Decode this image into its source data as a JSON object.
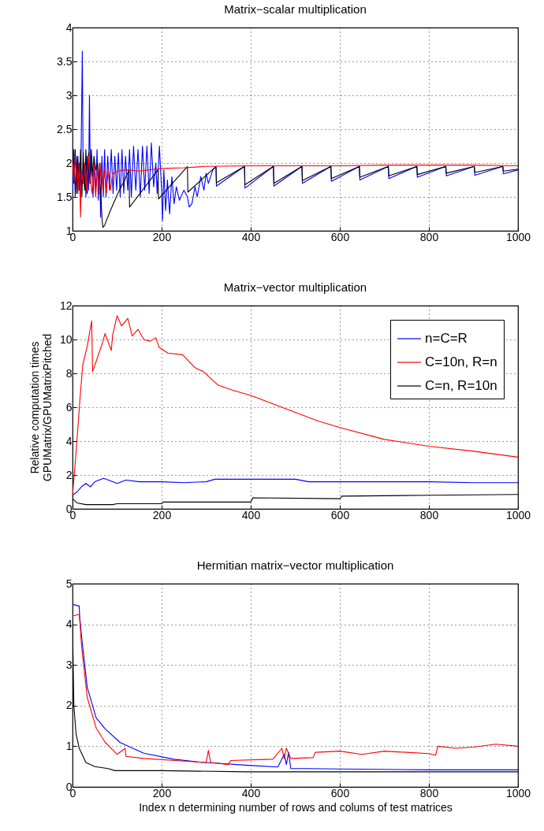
{
  "chart_data": [
    {
      "type": "line",
      "title": "Matrix−scalar multiplication",
      "xlim": [
        0,
        1000
      ],
      "xticks": [
        0,
        200,
        400,
        600,
        800,
        1000
      ],
      "ylim": [
        1,
        4
      ],
      "yticks": [
        1,
        1.5,
        2,
        2.5,
        3,
        3.5,
        4
      ],
      "grid": true,
      "legend": false,
      "series": [
        {
          "color": "#0000ff",
          "x": [
            0,
            3,
            6,
            9,
            12,
            15,
            18,
            22,
            24,
            27,
            30,
            33,
            36,
            38,
            40,
            43,
            46,
            49,
            52,
            55,
            58,
            61,
            63,
            66,
            69,
            72,
            75,
            79,
            83,
            87,
            91,
            95,
            99,
            103,
            107,
            111,
            115,
            119,
            124,
            128,
            132,
            137,
            142,
            147,
            152,
            157,
            162,
            167,
            172,
            177,
            182,
            187,
            190,
            195,
            200,
            202,
            205,
            209,
            213,
            218,
            223,
            228,
            233,
            240,
            250,
            258,
            262,
            268,
            275,
            280,
            288,
            295,
            300,
            305,
            315,
            322,
            323,
            386,
            387,
            451,
            452,
            515,
            516,
            580,
            581,
            644,
            645,
            709,
            710,
            773,
            774,
            838,
            839,
            902,
            903,
            966,
            967,
            1000
          ],
          "values": [
            1.6,
            2.2,
            1.5,
            2.1,
            1.6,
            2.0,
            1.5,
            3.65,
            1.7,
            2.0,
            1.5,
            2.1,
            1.6,
            3.0,
            1.7,
            2.1,
            1.5,
            2.0,
            1.55,
            2.2,
            1.45,
            2.0,
            1.2,
            2.1,
            1.5,
            2.2,
            1.5,
            2.1,
            1.6,
            2.2,
            1.55,
            2.1,
            1.6,
            2.15,
            1.5,
            2.2,
            1.55,
            2.1,
            1.6,
            2.2,
            1.5,
            2.25,
            1.6,
            2.2,
            1.5,
            2.25,
            1.6,
            2.25,
            1.55,
            2.3,
            1.65,
            2.0,
            1.55,
            2.25,
            1.6,
            1.15,
            1.9,
            1.3,
            1.75,
            1.25,
            1.8,
            1.4,
            1.65,
            1.45,
            1.6,
            1.5,
            1.35,
            1.4,
            1.65,
            1.5,
            1.8,
            1.6,
            1.85,
            1.7,
            1.9,
            1.95,
            1.66,
            1.95,
            1.63,
            1.95,
            1.66,
            1.95,
            1.7,
            1.95,
            1.73,
            1.95,
            1.75,
            1.95,
            1.77,
            1.95,
            1.79,
            1.95,
            1.81,
            1.95,
            1.82,
            1.95,
            1.84,
            1.9
          ]
        },
        {
          "color": "#000000",
          "x": [
            0,
            3,
            6,
            9,
            12,
            15,
            18,
            21,
            24,
            27,
            30,
            33,
            36,
            39,
            42,
            45,
            48,
            52,
            56,
            60,
            63,
            66,
            68,
            72,
            76,
            85,
            95,
            105,
            115,
            127,
            128,
            192,
            193,
            258,
            259,
            322,
            323,
            386,
            387,
            451,
            452,
            515,
            516,
            580,
            581,
            644,
            645,
            709,
            710,
            773,
            774,
            838,
            839,
            902,
            903,
            966,
            967,
            1000
          ],
          "values": [
            2.15,
            1.7,
            2.2,
            1.55,
            2.1,
            1.6,
            2.2,
            1.5,
            2.15,
            1.6,
            2.2,
            1.55,
            2.15,
            1.7,
            2.2,
            1.8,
            2.1,
            1.9,
            2.0,
            1.75,
            1.6,
            1.2,
            1.05,
            1.08,
            1.15,
            1.3,
            1.45,
            1.6,
            1.72,
            1.9,
            1.35,
            1.9,
            1.47,
            1.95,
            1.57,
            1.95,
            1.71,
            1.95,
            1.68,
            1.95,
            1.7,
            1.95,
            1.74,
            1.95,
            1.77,
            1.95,
            1.79,
            1.95,
            1.81,
            1.95,
            1.83,
            1.95,
            1.85,
            1.95,
            1.86,
            1.95,
            1.88,
            1.91
          ]
        },
        {
          "color": "#ff0000",
          "x": [
            0,
            3,
            6,
            9,
            12,
            15,
            18,
            20,
            24,
            28,
            32,
            36,
            40,
            44,
            48,
            52,
            56,
            60,
            64,
            68,
            72,
            76,
            80,
            85,
            90,
            95,
            100,
            120,
            150,
            200,
            250,
            300,
            400,
            500,
            600,
            700,
            800,
            900,
            1000
          ],
          "values": [
            2.0,
            1.75,
            2.1,
            1.8,
            1.55,
            2.0,
            1.2,
            1.9,
            1.7,
            2.0,
            1.6,
            2.1,
            1.75,
            1.55,
            2.0,
            1.5,
            1.95,
            1.55,
            2.0,
            1.6,
            1.9,
            1.55,
            1.9,
            1.6,
            1.85,
            1.85,
            1.88,
            1.9,
            1.88,
            1.92,
            1.93,
            1.95,
            1.96,
            1.96,
            1.96,
            1.97,
            1.97,
            1.97,
            1.96
          ]
        }
      ]
    },
    {
      "type": "line",
      "title": "Matrix−vector multiplication",
      "ylabel": "Relative computation times\nGPUMatrix/GPUMatrixPitched",
      "xlim": [
        0,
        1000
      ],
      "xticks": [
        0,
        200,
        400,
        600,
        800,
        1000
      ],
      "ylim": [
        0,
        12
      ],
      "yticks": [
        0,
        2,
        4,
        6,
        8,
        10,
        12
      ],
      "grid": true,
      "legend": "top right",
      "series": [
        {
          "name": "n=C=R",
          "color": "#0000ff",
          "x": [
            0,
            10,
            20,
            30,
            40,
            50,
            70,
            90,
            100,
            120,
            150,
            200,
            250,
            300,
            320,
            350,
            400,
            450,
            500,
            530,
            600,
            700,
            800,
            900,
            1000
          ],
          "values": [
            0.8,
            1.0,
            1.3,
            1.5,
            1.3,
            1.6,
            1.8,
            1.6,
            1.5,
            1.7,
            1.6,
            1.6,
            1.55,
            1.6,
            1.75,
            1.75,
            1.75,
            1.75,
            1.75,
            1.6,
            1.6,
            1.6,
            1.6,
            1.55,
            1.55
          ]
        },
        {
          "name": "C=10n, R=n",
          "color": "#ff0000",
          "x": [
            0,
            7,
            17,
            23,
            33,
            43,
            45,
            53,
            67,
            73,
            87,
            90,
            100,
            110,
            124,
            134,
            147,
            160,
            174,
            187,
            194,
            214,
            247,
            274,
            294,
            327,
            360,
            400,
            450,
            500,
            550,
            600,
            700,
            800,
            900,
            1000
          ],
          "values": [
            0.8,
            3.0,
            6.6,
            8.5,
            9.6,
            11.1,
            8.1,
            8.7,
            9.8,
            10.35,
            9.35,
            10.25,
            11.4,
            10.8,
            11.25,
            10.2,
            10.6,
            10.0,
            9.9,
            10.1,
            9.55,
            9.2,
            9.1,
            8.35,
            8.1,
            7.3,
            7.0,
            6.7,
            6.2,
            5.7,
            5.2,
            4.8,
            4.1,
            3.7,
            3.4,
            3.05
          ]
        },
        {
          "name": "C=n, R=10n",
          "color": "#000000",
          "x": [
            0,
            10,
            30,
            90,
            100,
            200,
            203,
            400,
            405,
            600,
            605,
            800,
            1000
          ],
          "values": [
            0.6,
            0.35,
            0.25,
            0.25,
            0.3,
            0.3,
            0.4,
            0.4,
            0.65,
            0.6,
            0.75,
            0.8,
            0.85
          ]
        }
      ]
    },
    {
      "type": "line",
      "title": "Hermitian matrix−vector multiplication",
      "xlabel": "Index n determining number of rows and colums of test matrices",
      "xlim": [
        0,
        1000
      ],
      "xticks": [
        0,
        200,
        400,
        600,
        800,
        1000
      ],
      "ylim": [
        0,
        5
      ],
      "yticks": [
        0,
        1,
        2,
        3,
        4,
        5
      ],
      "grid": true,
      "legend": false,
      "series": [
        {
          "color": "#0000ff",
          "x": [
            0,
            15,
            16,
            20,
            33,
            53,
            73,
            107,
            160,
            227,
            294,
            327,
            394,
            461,
            475,
            480,
            485,
            490,
            527,
            600,
            800,
            1000
          ],
          "values": [
            4.49,
            4.45,
            4.2,
            3.73,
            2.45,
            1.7,
            1.43,
            1.09,
            0.83,
            0.68,
            0.6,
            0.58,
            0.53,
            0.49,
            0.8,
            0.55,
            0.85,
            0.45,
            0.45,
            0.44,
            0.42,
            0.42
          ]
        },
        {
          "color": "#ff0000",
          "x": [
            0,
            15,
            17,
            20,
            33,
            53,
            73,
            100,
            118,
            120,
            160,
            230,
            300,
            305,
            310,
            350,
            355,
            450,
            470,
            475,
            480,
            490,
            540,
            545,
            600,
            650,
            700,
            750,
            800,
            815,
            820,
            860,
            900,
            950,
            1000
          ],
          "values": [
            4.2,
            4.25,
            4.0,
            3.5,
            2.2,
            1.45,
            1.1,
            0.8,
            0.95,
            0.75,
            0.7,
            0.65,
            0.6,
            0.9,
            0.6,
            0.55,
            0.65,
            0.68,
            0.95,
            0.7,
            0.95,
            0.7,
            0.72,
            0.85,
            0.88,
            0.8,
            0.88,
            0.85,
            0.82,
            0.78,
            1.0,
            0.95,
            0.98,
            1.05,
            1.0
          ]
        },
        {
          "color": "#000000",
          "x": [
            0,
            3,
            8,
            15,
            30,
            50,
            80,
            95,
            100,
            200,
            390,
            1000
          ],
          "values": [
            4.0,
            2.0,
            1.3,
            0.95,
            0.6,
            0.5,
            0.45,
            0.4,
            0.4,
            0.4,
            0.37,
            0.37
          ]
        }
      ]
    }
  ]
}
